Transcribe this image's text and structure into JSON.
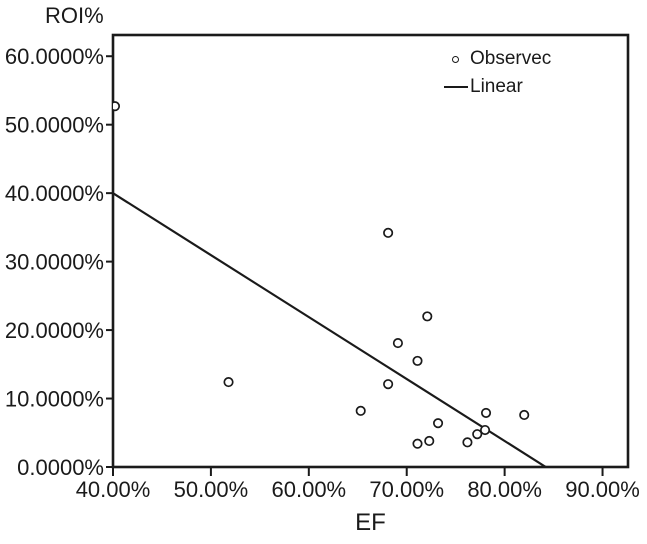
{
  "chart_data": {
    "type": "scatter",
    "title": "",
    "xlabel": "EF",
    "ylabel": "ROI%",
    "xlim": [
      40,
      92.6
    ],
    "ylim": [
      0,
      63.1
    ],
    "grid": false,
    "legend_position": "top-right-inside",
    "x_ticks": [
      {
        "value": 40,
        "label": "40.00%"
      },
      {
        "value": 50,
        "label": "50.00%"
      },
      {
        "value": 60,
        "label": "60.00%"
      },
      {
        "value": 70,
        "label": "70.00%"
      },
      {
        "value": 80,
        "label": "80.00%"
      },
      {
        "value": 90,
        "label": "90.00%"
      }
    ],
    "y_ticks": [
      {
        "value": 0,
        "label": "0.0000%"
      },
      {
        "value": 10,
        "label": "10.0000%"
      },
      {
        "value": 20,
        "label": "20.0000%"
      },
      {
        "value": 30,
        "label": "30.0000%"
      },
      {
        "value": 40,
        "label": "40.0000%"
      },
      {
        "value": 50,
        "label": "50.0000%"
      },
      {
        "value": 60,
        "label": "60.0000%"
      }
    ],
    "series": [
      {
        "name": "Observec",
        "type": "scatter",
        "marker": "open-circle",
        "points": [
          [
            40.2,
            52.7
          ],
          [
            51.8,
            12.4
          ],
          [
            65.3,
            8.2
          ],
          [
            68.1,
            12.1
          ],
          [
            68.1,
            34.2
          ],
          [
            69.1,
            18.1
          ],
          [
            71.1,
            3.4
          ],
          [
            71.1,
            15.5
          ],
          [
            72.1,
            22.0
          ],
          [
            72.3,
            3.8
          ],
          [
            73.2,
            6.4
          ],
          [
            76.2,
            3.6
          ],
          [
            77.2,
            4.8
          ],
          [
            78.0,
            5.4
          ],
          [
            78.1,
            7.9
          ],
          [
            82.0,
            7.6
          ]
        ]
      },
      {
        "name": "Linear",
        "type": "line",
        "points": [
          [
            40,
            40
          ],
          [
            84.2,
            0
          ]
        ]
      }
    ],
    "legend": [
      {
        "label": "Observec",
        "marker": "circle"
      },
      {
        "label": "Linear",
        "marker": "line"
      }
    ],
    "colors": {
      "foreground": "#1a1a1a",
      "background": "#ffffff"
    }
  }
}
